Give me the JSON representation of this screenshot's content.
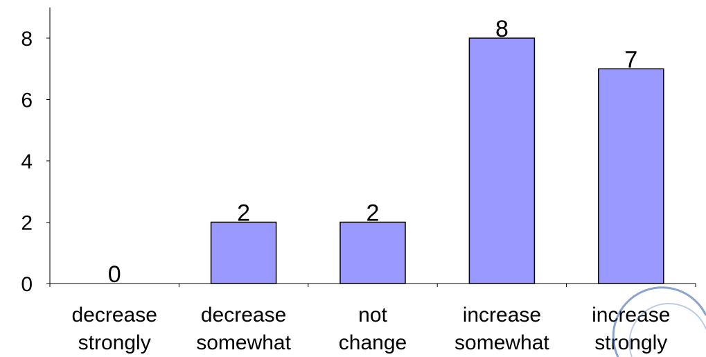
{
  "chart_data": {
    "type": "bar",
    "categories": [
      [
        "decrease",
        "strongly"
      ],
      [
        "decrease",
        "somewhat"
      ],
      [
        "not",
        "change"
      ],
      [
        "increase",
        "somewhat"
      ],
      [
        "increase",
        "strongly"
      ]
    ],
    "values": [
      0,
      2,
      2,
      8,
      7
    ],
    "data_labels": [
      "0",
      "2",
      "2",
      "8",
      "7"
    ],
    "y_ticks": [
      "0",
      "2",
      "4",
      "6",
      "8"
    ],
    "ylim": [
      0,
      9
    ],
    "grid": false,
    "legend": false,
    "title": "",
    "xlabel": "",
    "ylabel": "",
    "bar_color": "#9999ff",
    "bar_border_color": "#000000",
    "axis_color": "#000000"
  }
}
